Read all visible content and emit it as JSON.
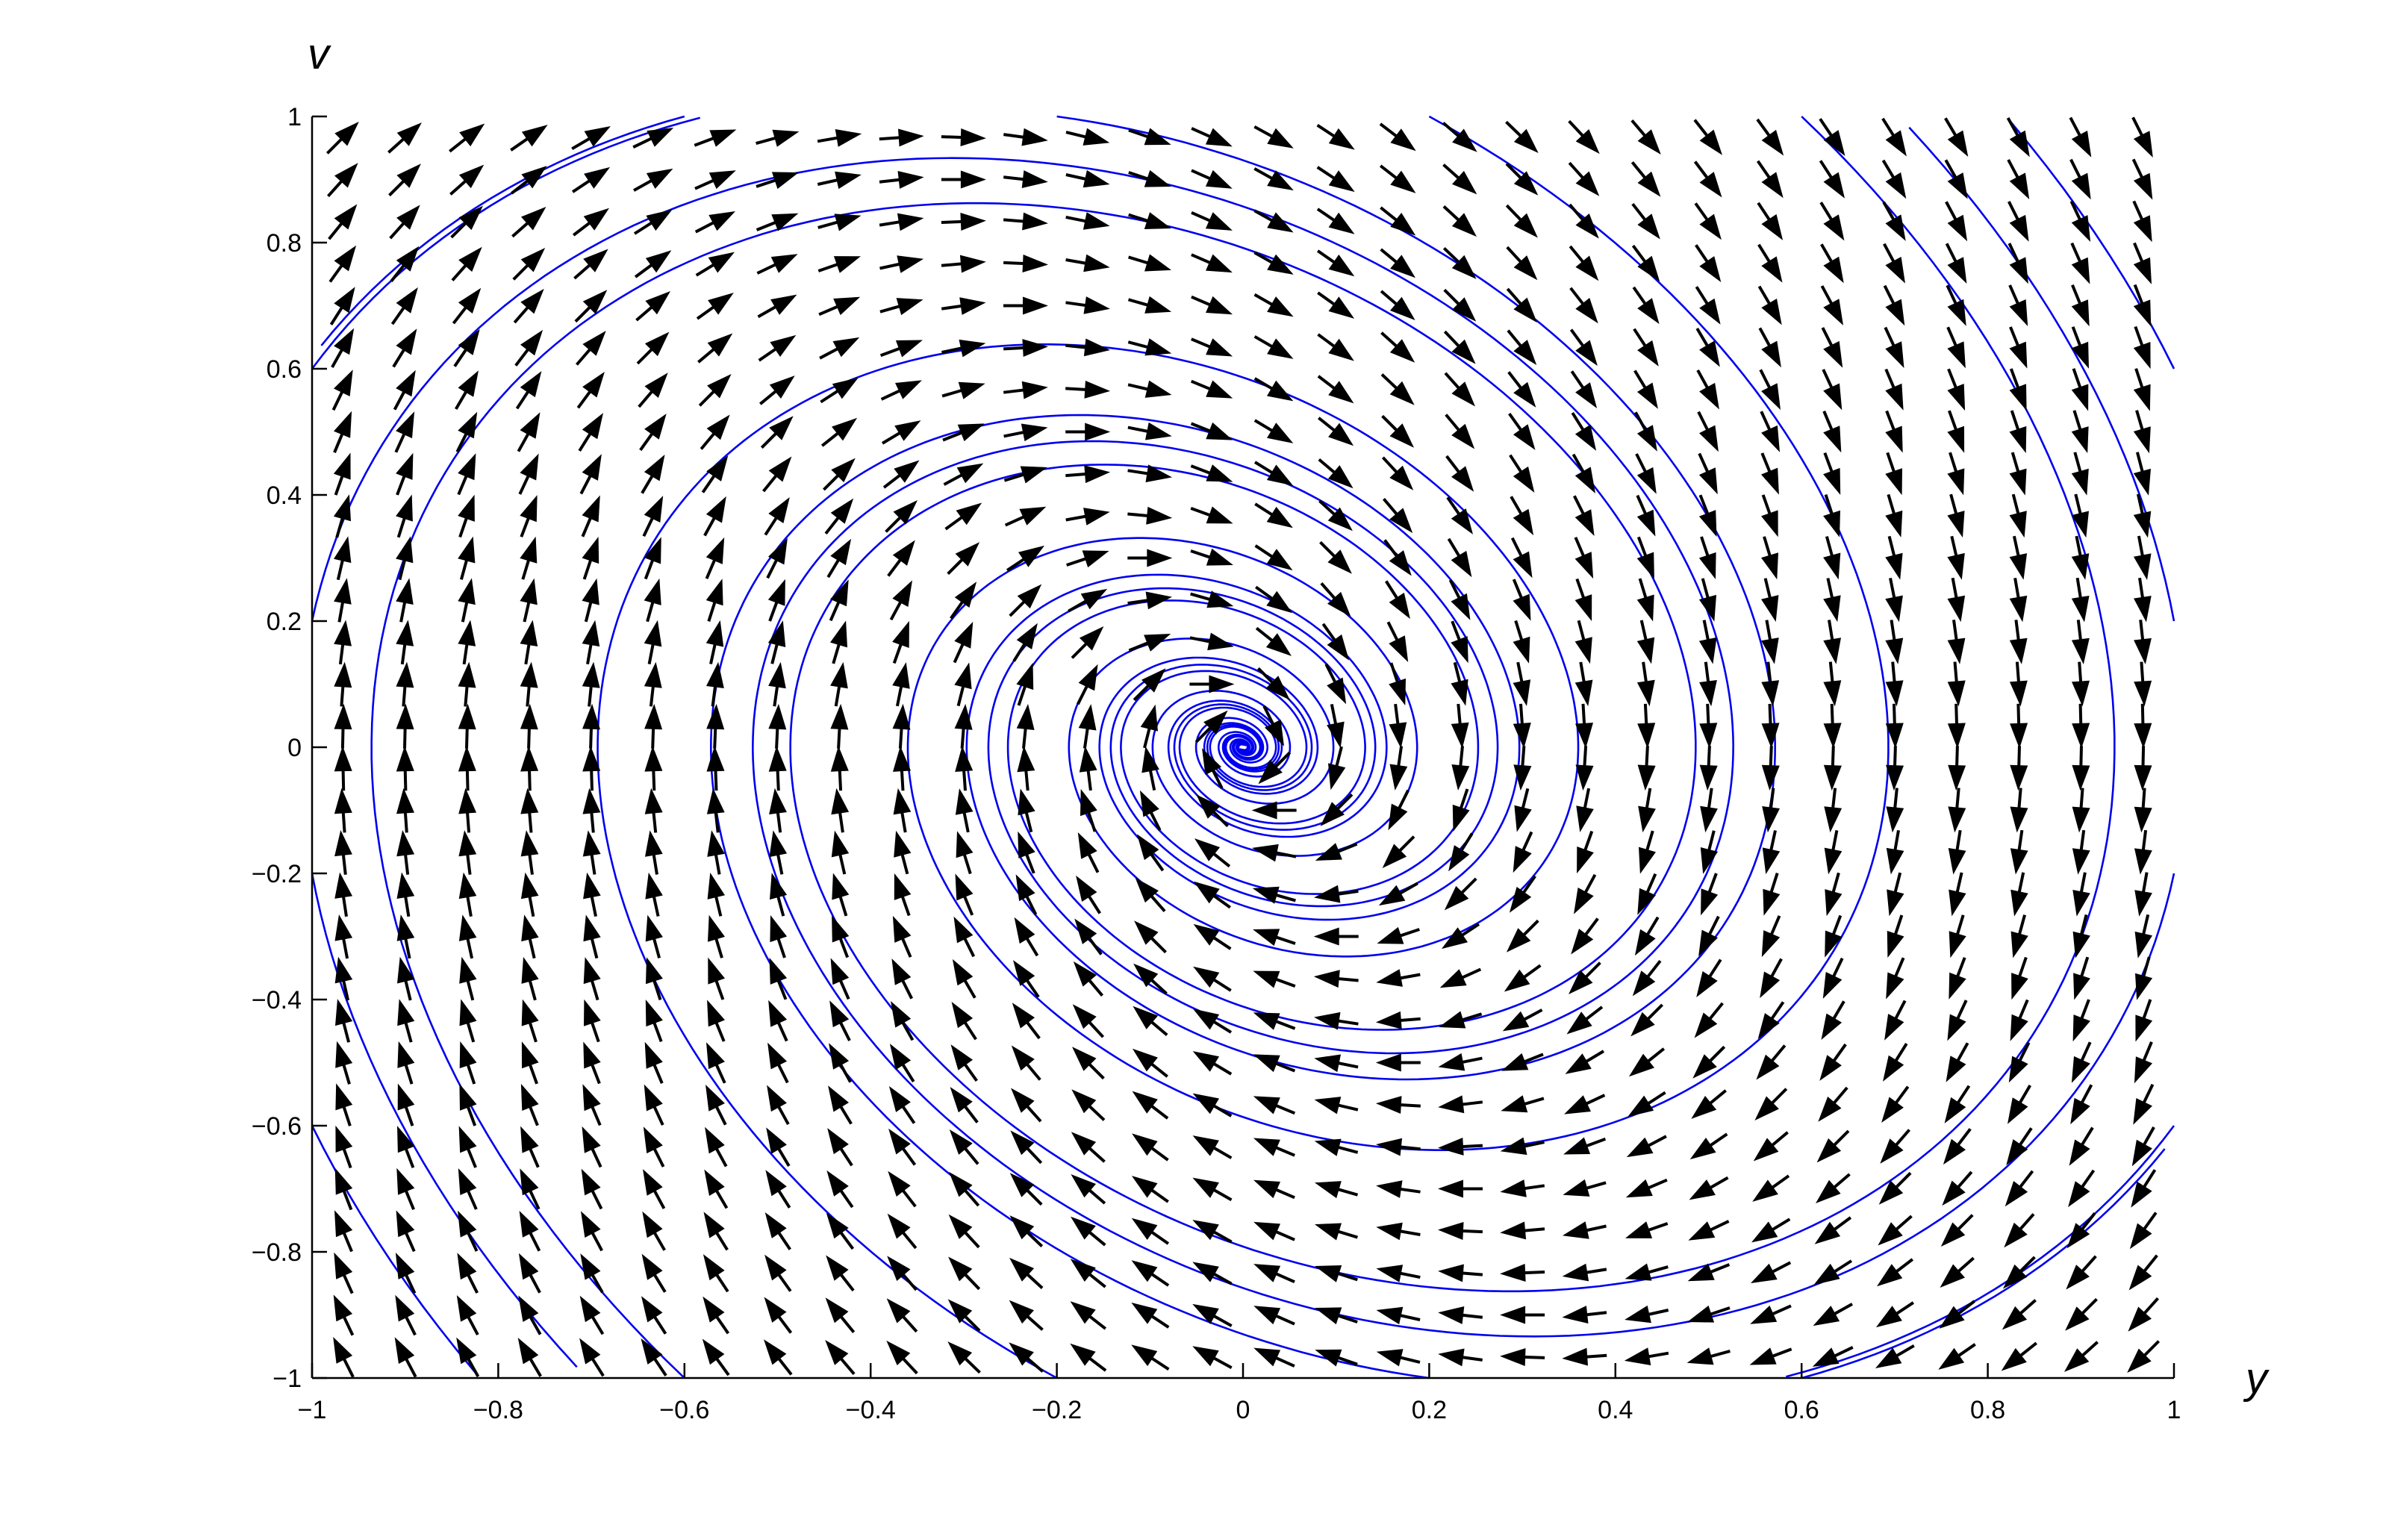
{
  "chart_data": {
    "type": "vector_field",
    "title": "",
    "xlabel": "y",
    "ylabel": "v",
    "xlim": [
      -1,
      1
    ],
    "ylim": [
      -1,
      1
    ],
    "x_ticks": [
      -1,
      -0.8,
      -0.6,
      -0.4,
      -0.2,
      0,
      0.2,
      0.4,
      0.6,
      0.8,
      1
    ],
    "y_ticks": [
      -1,
      -0.8,
      -0.6,
      -0.4,
      -0.2,
      0,
      0.2,
      0.4,
      0.6,
      0.8,
      1
    ],
    "x_tick_labels": [
      "−1",
      "−0.8",
      "−0.6",
      "−0.4",
      "−0.2",
      "0",
      "0.2",
      "0.4",
      "0.6",
      "0.8",
      "1"
    ],
    "y_tick_labels": [
      "−1",
      "−0.8",
      "−0.6",
      "−0.4",
      "−0.2",
      "0",
      "0.2",
      "0.4",
      "0.6",
      "0.8",
      "1"
    ],
    "system": {
      "dy_dt": "v",
      "dv_dt": "-1.5*y - 0.5*v"
    },
    "grid": false,
    "box": false,
    "colors": {
      "arrows": "#000000",
      "trajectories": "#0000ee",
      "axes": "#000000"
    }
  }
}
